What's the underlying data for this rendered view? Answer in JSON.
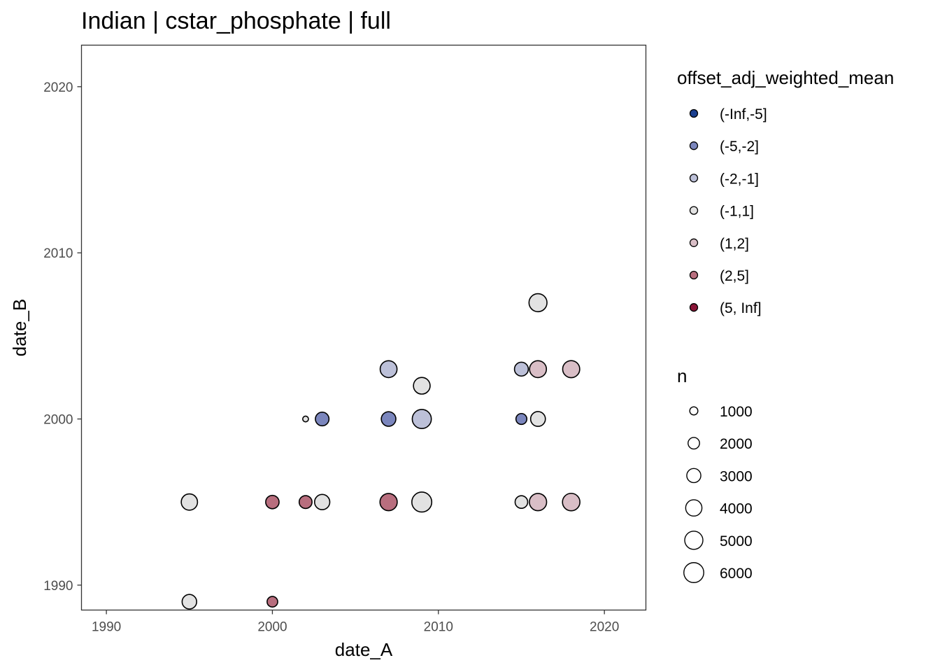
{
  "chart_data": {
    "type": "scatter",
    "title": "Indian | cstar_phosphate | full",
    "xlabel": "date_A",
    "ylabel": "date_B",
    "xlim": [
      1988.5,
      2022.5
    ],
    "ylim": [
      1988.5,
      2022.5
    ],
    "x_ticks": [
      1990,
      2000,
      2010,
      2020
    ],
    "y_ticks": [
      1990,
      2000,
      2010,
      2020
    ],
    "grid": false,
    "legend_position": "right",
    "color_legend": {
      "title": "offset_adj_weighted_mean",
      "entries": [
        {
          "label": "(-Inf,-5]",
          "color": "#1a3f8f"
        },
        {
          "label": "(-5,-2]",
          "color": "#7b86bd"
        },
        {
          "label": "(-2,-1]",
          "color": "#bcc0d8"
        },
        {
          "label": "(-1,1]",
          "color": "#e2e2e2"
        },
        {
          "label": "(1,2]",
          "color": "#d9bec6"
        },
        {
          "label": "(2,5]",
          "color": "#b86e7e"
        },
        {
          "label": "(5, Inf]",
          "color": "#8a1538"
        }
      ]
    },
    "size_legend": {
      "title": "n",
      "entries": [
        1000,
        2000,
        3000,
        4000,
        5000,
        6000
      ]
    },
    "points": [
      {
        "x": 1995,
        "y": 1989,
        "class": "(-1,1]",
        "n": 3200
      },
      {
        "x": 2000,
        "y": 1989,
        "class": "(2,5]",
        "n": 1700
      },
      {
        "x": 1995,
        "y": 1995,
        "class": "(-1,1]",
        "n": 4000
      },
      {
        "x": 2000,
        "y": 1995,
        "class": "(2,5]",
        "n": 2700
      },
      {
        "x": 2002,
        "y": 1995,
        "class": "(2,5]",
        "n": 2500
      },
      {
        "x": 2003,
        "y": 1995,
        "class": "(-1,1]",
        "n": 3500
      },
      {
        "x": 2007,
        "y": 1995,
        "class": "(2,5]",
        "n": 4500
      },
      {
        "x": 2009,
        "y": 1995,
        "class": "(-1,1]",
        "n": 6000
      },
      {
        "x": 2015,
        "y": 1995,
        "class": "(-1,1]",
        "n": 2400
      },
      {
        "x": 2016,
        "y": 1995,
        "class": "(1,2]",
        "n": 4500
      },
      {
        "x": 2018,
        "y": 1995,
        "class": "(1,2]",
        "n": 4600
      },
      {
        "x": 2002,
        "y": 2000,
        "class": "(-1,1]",
        "n": 500
      },
      {
        "x": 2003,
        "y": 2000,
        "class": "(-5,-2]",
        "n": 2800
      },
      {
        "x": 2007,
        "y": 2000,
        "class": "(-5,-2]",
        "n": 3200
      },
      {
        "x": 2009,
        "y": 2000,
        "class": "(-2,-1]",
        "n": 5500
      },
      {
        "x": 2015,
        "y": 2000,
        "class": "(-5,-2]",
        "n": 1800
      },
      {
        "x": 2016,
        "y": 2000,
        "class": "(-1,1]",
        "n": 3300
      },
      {
        "x": 2009,
        "y": 2002,
        "class": "(-1,1]",
        "n": 4200
      },
      {
        "x": 2007,
        "y": 2003,
        "class": "(-2,-1]",
        "n": 4300
      },
      {
        "x": 2015,
        "y": 2003,
        "class": "(-2,-1]",
        "n": 2900
      },
      {
        "x": 2016,
        "y": 2003,
        "class": "(1,2]",
        "n": 4300
      },
      {
        "x": 2018,
        "y": 2003,
        "class": "(1,2]",
        "n": 4400
      },
      {
        "x": 2016,
        "y": 2007,
        "class": "(-1,1]",
        "n": 4900
      }
    ]
  }
}
